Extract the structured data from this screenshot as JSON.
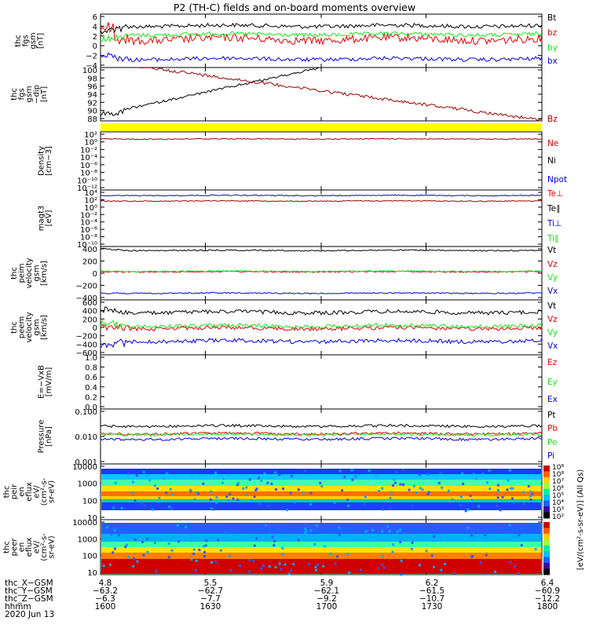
{
  "title": "P2 (TH-C) fields and on-board moments overview",
  "colors": {
    "black": "#000000",
    "red": "#e60000",
    "green": "#19e619",
    "blue": "#0000e6",
    "darkred": "#9b0000",
    "yellow": "#ffff00"
  },
  "chart_data": [
    {
      "type": "line",
      "id": "fgs",
      "ylabel": [
        "thc",
        "fgs",
        "gsm",
        "[nT]"
      ],
      "ylim": [
        -4,
        6
      ],
      "yticks": [
        "6",
        "4",
        "2",
        "0",
        "−2",
        "−4"
      ],
      "series": [
        {
          "name": "Bt",
          "color": "black",
          "level": 3.8
        },
        {
          "name": "bz",
          "color": "red",
          "level": 1.3
        },
        {
          "name": "by",
          "color": "green",
          "level": 2.2
        },
        {
          "name": "bx",
          "color": "blue",
          "level": -2.4
        }
      ]
    },
    {
      "type": "line",
      "id": "fgs_dip",
      "ylabel": [
        "thc",
        "fgs",
        "gsm",
        "−dip",
        "[nT]"
      ],
      "ylim": [
        87,
        100
      ],
      "yticks": [
        "100",
        "98",
        "96",
        "94",
        "92",
        "90",
        "88"
      ],
      "series": [
        {
          "name": "Bz",
          "color": "darkred"
        }
      ]
    },
    {
      "type": "line",
      "id": "density",
      "ylabel": [
        "Density",
        "[cm−3]"
      ],
      "ylim_exp": [
        -12,
        2
      ],
      "yticks": [
        "10²",
        "10⁰",
        "10⁻²",
        "10⁻⁴",
        "10⁻⁶",
        "10⁻⁸",
        "10⁻¹⁰",
        "10⁻¹²"
      ],
      "series": [
        {
          "name": "Ne",
          "color": "red"
        },
        {
          "name": "Ni",
          "color": "black"
        },
        {
          "name": "Npot",
          "color": "blue"
        }
      ]
    },
    {
      "type": "line",
      "id": "temp",
      "ylabel": [
        "magt3",
        "[eV]"
      ],
      "ylim_exp": [
        -10,
        4
      ],
      "yticks": [
        "10⁴",
        "10²",
        "10⁰",
        "10⁻²",
        "10⁻⁴",
        "10⁻⁶",
        "10⁻⁸",
        "10⁻¹⁰"
      ],
      "series": [
        {
          "name": "Te⊥",
          "color": "red"
        },
        {
          "name": "Te∥",
          "color": "black"
        },
        {
          "name": "Ti⊥",
          "color": "blue"
        },
        {
          "name": "Ti∥",
          "color": "green"
        }
      ]
    },
    {
      "type": "line",
      "id": "peim",
      "ylabel": [
        "thc",
        "peim",
        "velocity",
        "gsm",
        "[km/s]"
      ],
      "ylim": [
        -500,
        450
      ],
      "yticks": [
        "400",
        "200",
        "0",
        "−200",
        "−400"
      ],
      "series": [
        {
          "name": "Vt",
          "color": "black",
          "level": 380
        },
        {
          "name": "Vz",
          "color": "red",
          "level": 0
        },
        {
          "name": "Vy",
          "color": "green",
          "level": 10
        },
        {
          "name": "Vx",
          "color": "blue",
          "level": -380
        }
      ]
    },
    {
      "type": "line",
      "id": "peem",
      "ylabel": [
        "thc",
        "peem",
        "velocity",
        "gsm",
        "[km/s]"
      ],
      "ylim": [
        -600,
        600
      ],
      "yticks": [
        "600",
        "400",
        "200",
        "0",
        "−200",
        "−400",
        "−600"
      ],
      "series": [
        {
          "name": "Vt",
          "color": "black",
          "level": 330
        },
        {
          "name": "Vz",
          "color": "red",
          "level": -20
        },
        {
          "name": "Vy",
          "color": "green",
          "level": 30
        },
        {
          "name": "Vx",
          "color": "blue",
          "level": -300
        }
      ]
    },
    {
      "type": "line",
      "id": "efield",
      "ylabel": [
        "E=−VxB",
        "[mV/m]"
      ],
      "ylim": [
        0,
        1
      ],
      "yticks": [
        "1.0",
        "0.8",
        "0.6",
        "0.4",
        "0.2",
        "0.0"
      ],
      "series": [
        {
          "name": "Ez",
          "color": "red"
        },
        {
          "name": "Ey",
          "color": "green"
        },
        {
          "name": "Ex",
          "color": "blue"
        }
      ]
    },
    {
      "type": "line",
      "id": "pressure",
      "ylabel": [
        "Pressure",
        "[nPa]"
      ],
      "ylim_exp": [
        -3,
        -1
      ],
      "yticks": [
        "0.100",
        "0.010",
        "0.001"
      ],
      "series": [
        {
          "name": "Pt",
          "color": "black",
          "level": 0.026
        },
        {
          "name": "Pb",
          "color": "red",
          "level": 0.013
        },
        {
          "name": "Pe",
          "color": "green",
          "level": 0.012
        },
        {
          "name": "Pi",
          "color": "blue",
          "level": 0.008
        }
      ]
    },
    {
      "type": "heatmap",
      "id": "peir",
      "ylabel": [
        "thc",
        "peir",
        "en",
        "eflux",
        "eV/",
        "(cm²-s-",
        "sr-eV)"
      ],
      "yticks": [
        "10000",
        "1000",
        "100",
        "10"
      ],
      "colorbar_label": "[eV/(cm²-s-sr-eV)] (All Qs)"
    },
    {
      "type": "heatmap",
      "id": "peer",
      "ylabel": [
        "thc",
        "peer",
        "en",
        "eflux",
        "eV/",
        "(cm²-s-",
        "sr-eV)"
      ],
      "yticks": [
        "10000",
        "1000",
        "100",
        "10"
      ],
      "colorbar_ticks": [
        "10⁸",
        "10⁸",
        "10⁷",
        "10⁶",
        "10⁵",
        "10⁴",
        "10³",
        "10²"
      ]
    }
  ],
  "footer": {
    "rows": [
      {
        "label": "thc_X−GSM",
        "values": [
          "4.8",
          "5.5",
          "5.9",
          "6.2",
          "6.4"
        ]
      },
      {
        "label": "thc_Y−GSM",
        "values": [
          "−63.2",
          "−62.7",
          "−62.1",
          "−61.5",
          "−60.9"
        ]
      },
      {
        "label": "thc_Z−GSM",
        "values": [
          "−6.3",
          "−7.7",
          "−9.2",
          "−10.7",
          "−12.2"
        ]
      },
      {
        "label": "hhmm",
        "values": [
          "1600",
          "1630",
          "1700",
          "1730",
          "1800"
        ]
      }
    ],
    "date": "2020 Jun 13"
  }
}
